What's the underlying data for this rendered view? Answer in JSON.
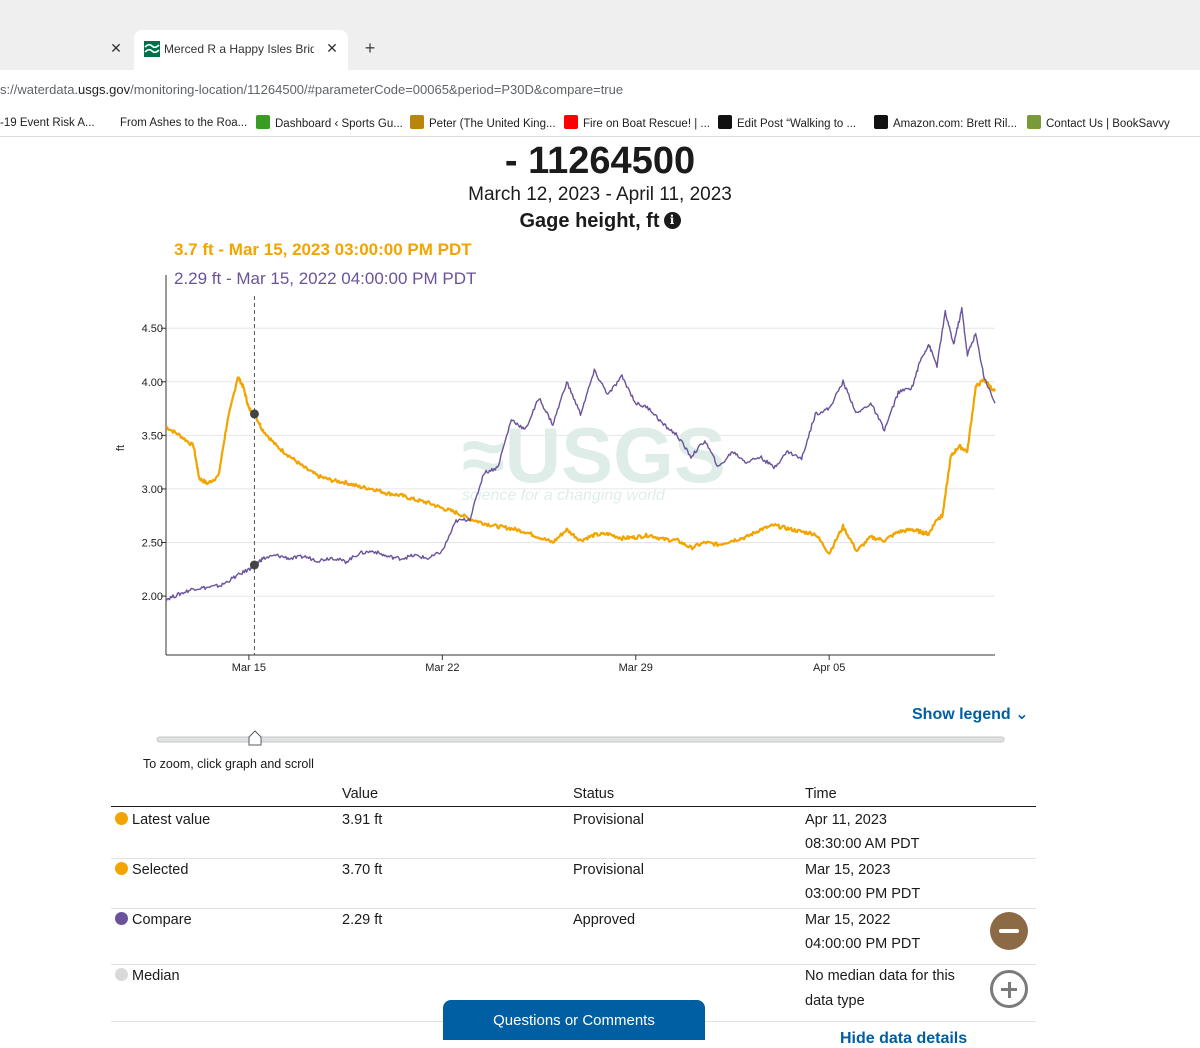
{
  "browser": {
    "active_tab_title": "Merced R a Happy Isles Bridge",
    "url_prefix": "s://waterdata.",
    "url_domain": "usgs.gov",
    "url_path": "/monitoring-location/11264500/#parameterCode=00065&period=P30D&compare=true",
    "bookmarks": [
      {
        "label": "-19 Event Risk A...",
        "icon": "",
        "color": ""
      },
      {
        "label": "From Ashes to the Roa...",
        "icon": "",
        "color": ""
      },
      {
        "label": "Dashboard ‹ Sports Gu...",
        "icon": "sg-icon",
        "color": "#3a9d23"
      },
      {
        "label": "Peter (The United King...",
        "icon": "g-icon",
        "color": "#b8860b"
      },
      {
        "label": "Fire on Boat Rescue! | ...",
        "icon": "youtube-icon",
        "color": "#ff0000"
      },
      {
        "label": "Edit Post “Walking to ...",
        "icon": "lv-icon",
        "color": "#111111"
      },
      {
        "label": "Amazon.com: Brett Ril...",
        "icon": "amazon-icon",
        "color": "#111111"
      },
      {
        "label": "Contact Us | BookSavvy",
        "icon": "booksavvy-icon",
        "color": "#7a9a3a"
      }
    ]
  },
  "page": {
    "title": "- 11264500",
    "date_range": "March 12, 2023 - April 11, 2023",
    "parameter": "Gage height, ft",
    "selected_label": "3.7 ft - Mar 15, 2023 03:00:00 PM PDT",
    "compare_label": "2.29 ft - Mar 15, 2022 04:00:00 PM PDT",
    "show_legend": "Show legend",
    "zoom_hint": "To zoom, click graph and scroll",
    "questions_button": "Questions or Comments",
    "hide_details": "Hide data details"
  },
  "colors": {
    "current": "#f2a400",
    "compare": "#6a539a",
    "median": "#d9d9d9",
    "link": "#005ea2",
    "minus_button": "#8b6a45",
    "plus_button": "#7a7a7a"
  },
  "chart_data": {
    "type": "line",
    "ylabel": "ft",
    "ylim": [
      1.45,
      4.95
    ],
    "yticks": [
      "2.00",
      "2.50",
      "3.00",
      "3.50",
      "4.00",
      "4.50"
    ],
    "xlim_days": [
      0,
      30
    ],
    "xticks": [
      {
        "label": "Mar 15",
        "day": 3
      },
      {
        "label": "Mar 22",
        "day": 10
      },
      {
        "label": "Mar 29",
        "day": 17
      },
      {
        "label": "Apr 05",
        "day": 24
      }
    ],
    "selected_day": 3.2,
    "selected_points": [
      {
        "series": "current",
        "y": 3.7
      },
      {
        "series": "compare",
        "y": 2.29
      }
    ],
    "series": [
      {
        "name": "current",
        "x": [
          0,
          0.5,
          1.0,
          1.2,
          1.5,
          1.9,
          2.2,
          2.6,
          2.8,
          3.0,
          3.2,
          3.5,
          4.0,
          4.5,
          5.0,
          5.5,
          6.0,
          6.5,
          7.0,
          7.5,
          8.0,
          8.5,
          9.0,
          9.5,
          10.0,
          10.5,
          11.0,
          11.5,
          12.0,
          12.5,
          13.0,
          13.5,
          14.0,
          14.5,
          15.0,
          15.5,
          16.0,
          16.5,
          17.0,
          17.5,
          18.0,
          18.5,
          19.0,
          19.5,
          20.0,
          20.5,
          21.0,
          21.5,
          22.0,
          22.5,
          23.0,
          23.5,
          24.0,
          24.5,
          25.0,
          25.5,
          26.0,
          26.5,
          27.0,
          27.3,
          27.6,
          27.9,
          28.1,
          28.4,
          28.7,
          29.0,
          29.3,
          29.6,
          30.0
        ],
        "y": [
          3.58,
          3.5,
          3.4,
          3.1,
          3.05,
          3.12,
          3.6,
          4.05,
          3.95,
          3.75,
          3.7,
          3.55,
          3.4,
          3.3,
          3.2,
          3.12,
          3.08,
          3.06,
          3.02,
          3.0,
          2.96,
          2.94,
          2.9,
          2.87,
          2.82,
          2.78,
          2.72,
          2.68,
          2.65,
          2.63,
          2.6,
          2.55,
          2.5,
          2.62,
          2.52,
          2.57,
          2.58,
          2.54,
          2.55,
          2.57,
          2.53,
          2.52,
          2.45,
          2.5,
          2.48,
          2.52,
          2.55,
          2.62,
          2.66,
          2.63,
          2.6,
          2.58,
          2.4,
          2.65,
          2.42,
          2.55,
          2.52,
          2.6,
          2.62,
          2.6,
          2.58,
          2.72,
          2.75,
          3.3,
          3.4,
          3.35,
          3.95,
          4.02,
          3.91
        ]
      },
      {
        "name": "compare",
        "x": [
          0,
          0.5,
          1.0,
          1.5,
          2.0,
          2.5,
          3.0,
          3.2,
          3.5,
          4.0,
          4.5,
          5.0,
          5.5,
          6.0,
          6.5,
          7.0,
          7.5,
          8.0,
          8.5,
          9.0,
          9.5,
          10.0,
          10.5,
          11.0,
          11.5,
          12.0,
          12.5,
          13.0,
          13.5,
          14.0,
          14.5,
          15.0,
          15.5,
          16.0,
          16.5,
          17.0,
          17.5,
          18.0,
          18.5,
          19.0,
          19.5,
          20.0,
          20.5,
          21.0,
          21.5,
          22.0,
          22.5,
          23.0,
          23.5,
          24.0,
          24.5,
          25.0,
          25.5,
          26.0,
          26.5,
          27.0,
          27.3,
          27.6,
          27.9,
          28.2,
          28.5,
          28.8,
          29.0,
          29.3,
          29.6,
          30.0
        ],
        "y": [
          1.97,
          2.02,
          2.07,
          2.08,
          2.1,
          2.18,
          2.25,
          2.29,
          2.35,
          2.38,
          2.35,
          2.37,
          2.33,
          2.36,
          2.32,
          2.4,
          2.42,
          2.37,
          2.35,
          2.38,
          2.35,
          2.42,
          2.7,
          2.72,
          3.15,
          3.2,
          3.65,
          3.55,
          3.85,
          3.6,
          4.0,
          3.7,
          4.1,
          3.88,
          4.05,
          3.8,
          3.75,
          3.6,
          3.5,
          3.3,
          3.45,
          3.2,
          3.35,
          3.25,
          3.3,
          3.2,
          3.35,
          3.28,
          3.7,
          3.75,
          4.0,
          3.7,
          3.8,
          3.55,
          3.9,
          3.95,
          4.2,
          4.35,
          4.15,
          4.65,
          4.35,
          4.68,
          4.25,
          4.45,
          4.05,
          3.8
        ]
      }
    ]
  },
  "table": {
    "headers": [
      "Value",
      "Status",
      "Time"
    ],
    "rows": [
      {
        "label": "Latest value",
        "dot": "current",
        "value": "3.91 ft",
        "status": "Provisional",
        "time1": "Apr 11, 2023",
        "time2": "08:30:00 AM PDT",
        "button": ""
      },
      {
        "label": "Selected",
        "dot": "current",
        "value": "3.70 ft",
        "status": "Provisional",
        "time1": "Mar 15, 2023",
        "time2": "03:00:00 PM PDT",
        "button": ""
      },
      {
        "label": "Compare",
        "dot": "compare",
        "value": "2.29 ft",
        "status": "Approved",
        "time1": "Mar 15, 2022",
        "time2": "04:00:00 PM PDT",
        "button": "minus"
      },
      {
        "label": "Median",
        "dot": "median",
        "value": "",
        "status": "",
        "time1": "No median data for this",
        "time2": "data type",
        "button": "plus"
      }
    ]
  }
}
